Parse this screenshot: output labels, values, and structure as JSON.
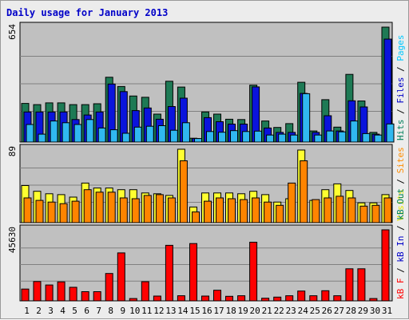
{
  "chart_data": {
    "type": "bar",
    "title": "Daily usage for January 2013",
    "x": [
      "1",
      "2",
      "3",
      "4",
      "5",
      "6",
      "7",
      "8",
      "9",
      "10",
      "11",
      "12",
      "13",
      "14",
      "15",
      "16",
      "17",
      "18",
      "19",
      "20",
      "21",
      "22",
      "23",
      "24",
      "25",
      "26",
      "27",
      "28",
      "29",
      "30",
      "31"
    ],
    "weekend_days": [
      5,
      6,
      12,
      13,
      19,
      20,
      26,
      27
    ],
    "panels": [
      {
        "id": "hits",
        "max_label": "654",
        "ylim": [
          0,
          654
        ],
        "legend": [
          {
            "text": "Hits",
            "color": "#00805c"
          },
          {
            "text": " / ",
            "color": "#000000"
          },
          {
            "text": "Files",
            "color": "#0000c8"
          },
          {
            "text": " / ",
            "color": "#000000"
          },
          {
            "text": "Pages",
            "color": "#00c8ff"
          }
        ],
        "series": [
          {
            "name": "Hits",
            "color": "#1e7a55",
            "values": [
              220,
              213,
              223,
              223,
              213,
              213,
              218,
              369,
              316,
              262,
              255,
              159,
              346,
              313,
              22,
              171,
              159,
              130,
              128,
              324,
              120,
              83,
              105,
              340,
              63,
              241,
              85,
              385,
              234,
              55,
              654
            ]
          },
          {
            "name": "Files",
            "color": "#0a14dc",
            "values": [
              171,
              171,
              171,
              171,
              128,
              154,
              171,
              330,
              287,
              179,
              194,
              130,
              202,
              250,
              20,
              139,
              116,
              102,
              102,
              314,
              80,
              55,
              55,
              277,
              55,
              150,
              63,
              235,
              200,
              45,
              586
            ]
          },
          {
            "name": "Pages",
            "color": "#30b8f0",
            "values": [
              100,
              45,
              120,
              110,
              100,
              128,
              80,
              70,
              50,
              85,
              90,
              93,
              67,
              110,
              20,
              60,
              56,
              65,
              60,
              62,
              40,
              45,
              40,
              275,
              40,
              63,
              58,
              120,
              48,
              40,
              103
            ]
          }
        ]
      },
      {
        "id": "visits",
        "max_label": "89",
        "ylim": [
          0,
          89
        ],
        "legend": [
          {
            "text": "Visits",
            "color": "#e8e800"
          },
          {
            "text": " / ",
            "color": "#000000"
          },
          {
            "text": "Sites",
            "color": "#ff8c00"
          }
        ],
        "series": [
          {
            "name": "Visits",
            "color": "#ffff30",
            "values": [
              45,
              38,
              35,
              34,
              31,
              48,
              42,
              42,
              40,
              40,
              36,
              35,
              33,
              89,
              19,
              36,
              36,
              36,
              35,
              38,
              34,
              25,
              29,
              88,
              27,
              40,
              47,
              39,
              24,
              24,
              34
            ]
          },
          {
            "name": "Sites",
            "color": "#ff8400",
            "values": [
              30,
              27,
              25,
              23,
              26,
              40,
              37,
              37,
              30,
              29,
              33,
              34,
              30,
              75,
              13,
              26,
              30,
              29,
              28,
              30,
              25,
              21,
              48,
              75,
              28,
              30,
              32,
              30,
              20,
              21,
              30
            ]
          }
        ]
      },
      {
        "id": "kbytes",
        "max_label": "45630",
        "ylim": [
          0,
          45630
        ],
        "legend": [
          {
            "text": "kB F",
            "color": "#ff0000"
          },
          {
            "text": " / ",
            "color": "#000000"
          },
          {
            "text": "kB In",
            "color": "#0000c8"
          },
          {
            "text": " / ",
            "color": "#000000"
          },
          {
            "text": "kB Out",
            "color": "#00805c"
          }
        ],
        "series": [
          {
            "name": "kB F",
            "color": "#ff0000",
            "values": [
              7600,
              12400,
              10200,
              12200,
              8700,
              5900,
              5900,
              17600,
              30800,
              1500,
              12300,
              3100,
              35700,
              3300,
              36800,
              3100,
              6800,
              2900,
              3300,
              37700,
              1700,
              2400,
              3300,
              6300,
              3300,
              6500,
              3300,
              20600,
              20600,
              1500,
              45630
            ]
          }
        ]
      }
    ]
  }
}
